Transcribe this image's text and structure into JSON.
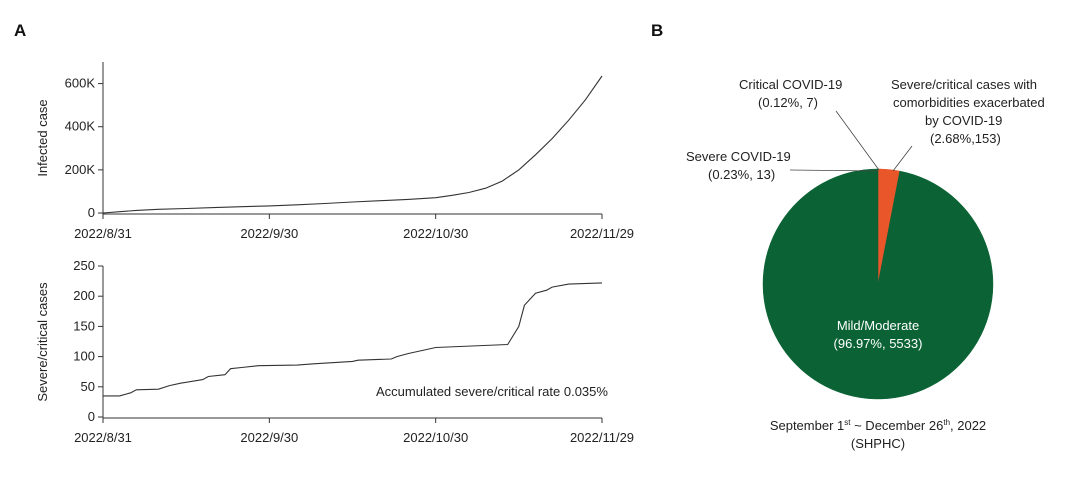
{
  "panels": {
    "a_letter": "A",
    "b_letter": "B"
  },
  "chart_data": [
    {
      "type": "line",
      "ylabel": "Infected case",
      "xticks": [
        "2022/8/31",
        "2022/9/30",
        "2022/10/30",
        "2022/11/29"
      ],
      "yticks": [
        "0",
        "200K",
        "400K",
        "600K"
      ],
      "xlim_days": [
        0,
        90
      ],
      "ylim": [
        0,
        700000
      ],
      "series": [
        {
          "x": [
            0,
            3,
            6,
            10,
            15,
            20,
            25,
            30,
            35,
            40,
            45,
            50,
            55,
            60,
            63,
            66,
            69,
            72,
            75,
            78,
            81,
            84,
            87,
            90
          ],
          "y": [
            0,
            6000,
            12000,
            17000,
            21000,
            25000,
            29000,
            33000,
            38000,
            44000,
            51000,
            57000,
            63000,
            71000,
            82000,
            95000,
            115000,
            148000,
            200000,
            270000,
            345000,
            430000,
            525000,
            635000
          ]
        }
      ]
    },
    {
      "type": "line",
      "ylabel": "Severe/critical cases",
      "xticks": [
        "2022/8/31",
        "2022/9/30",
        "2022/10/30",
        "2022/11/29"
      ],
      "yticks": [
        "0",
        "50",
        "100",
        "150",
        "200",
        "250"
      ],
      "xlim_days": [
        0,
        90
      ],
      "ylim": [
        0,
        250
      ],
      "annotation": "Accumulated severe/critical rate 0.035%",
      "series": [
        {
          "x": [
            0,
            3,
            5,
            6,
            10,
            12,
            14,
            18,
            19,
            22,
            23,
            25,
            28,
            35,
            38,
            45,
            46,
            52,
            53,
            55,
            60,
            73,
            75,
            76,
            78,
            80,
            81,
            84,
            90
          ],
          "y": [
            35,
            35,
            40,
            45,
            46,
            52,
            56,
            62,
            67,
            70,
            80,
            82,
            85,
            86,
            88,
            92,
            94,
            96,
            100,
            105,
            115,
            120,
            150,
            185,
            205,
            210,
            215,
            220,
            222
          ]
        }
      ]
    },
    {
      "type": "pie",
      "slices": [
        {
          "label": "Mild/Moderate",
          "detail": "(96.97%, 5533)",
          "value": 96.97,
          "color": "#0b6335"
        },
        {
          "label": "Severe COVID-19",
          "detail": "(0.23%, 13)",
          "value": 0.23,
          "color": "#e8562a"
        },
        {
          "label": "Critical COVID-19",
          "detail": "(0.12%, 7)",
          "value": 0.12,
          "color": "#e8562a"
        },
        {
          "label": "Severe/critical cases with comorbidities exacerbated by COVID-19",
          "detail": "(2.68%,153)",
          "value": 2.68,
          "color": "#e8562a"
        }
      ],
      "caption": "September 1st ~ December 26th, 2022 (SHPHC)"
    }
  ],
  "text": {
    "pie_mild_line1": "Mild/Moderate",
    "pie_mild_line2": "(96.97%, 5533)",
    "pie_severe_line1": "Severe COVID-19",
    "pie_severe_line2": "(0.23%, 13)",
    "pie_critical_line1": "Critical COVID-19",
    "pie_critical_line2": "(0.12%, 7)",
    "pie_comorb_line1": "Severe/critical cases with",
    "pie_comorb_line2": "comorbidities exacerbated",
    "pie_comorb_line3": "by COVID-19",
    "pie_comorb_line4": "(2.68%,153)",
    "caption_line1_a": "September 1",
    "caption_sup1": "st",
    "caption_line1_b": " ~ December 26",
    "caption_sup2": "th",
    "caption_line1_c": ", 2022",
    "caption_line2": "(SHPHC)"
  }
}
